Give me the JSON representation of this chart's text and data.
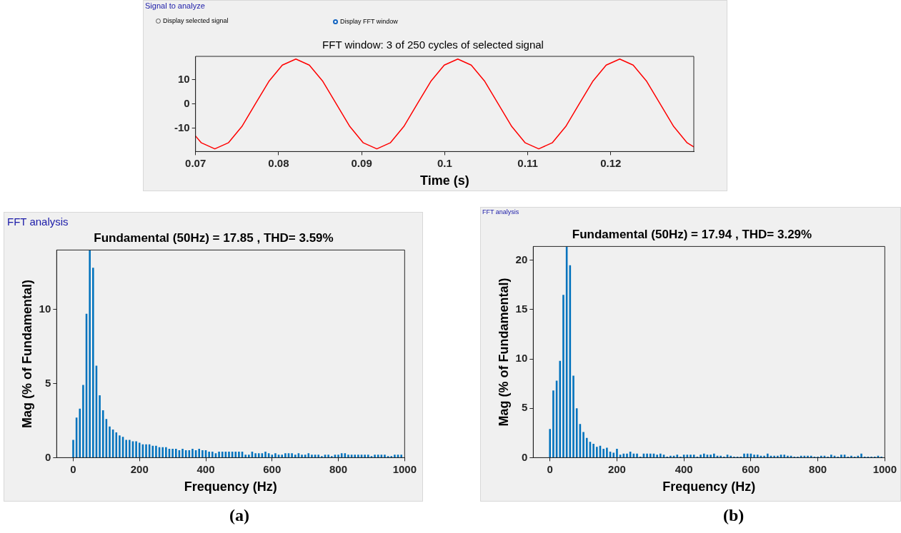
{
  "chart_data": [
    {
      "type": "line",
      "title": "FFT window: 3 of 250 cycles of selected signal",
      "xlabel": "Time (s)",
      "color": "#ff0000",
      "x": [
        0.07,
        0.0707,
        0.07232,
        0.07395,
        0.07558,
        0.0772,
        0.07883,
        0.08045,
        0.08208,
        0.0837,
        0.08533,
        0.08695,
        0.08858,
        0.0902,
        0.09183,
        0.09345,
        0.09508,
        0.0967,
        0.09833,
        0.09995,
        0.10158,
        0.1032,
        0.10483,
        0.10645,
        0.10808,
        0.1097,
        0.11133,
        0.11295,
        0.11458,
        0.1162,
        0.11783,
        0.11945,
        0.12108,
        0.1227,
        0.12433,
        0.12595,
        0.12758,
        0.1292,
        0.13
      ],
      "values": [
        -13.2,
        -16.0,
        -18.5,
        -16.0,
        -9.3,
        0,
        9.3,
        16.0,
        18.5,
        16.0,
        9.3,
        0,
        -9.3,
        -16.0,
        -18.5,
        -16.0,
        -9.3,
        0,
        9.3,
        16.0,
        18.5,
        16.0,
        9.3,
        0,
        -9.3,
        -16.0,
        -18.5,
        -16.0,
        -9.3,
        0,
        9.3,
        16.0,
        18.5,
        16.0,
        9.3,
        0,
        -9.3,
        -16.0,
        -17.7
      ],
      "xlim": [
        0.07,
        0.13
      ],
      "xticks": [
        0.07,
        0.08,
        0.09,
        0.1,
        0.11,
        0.12
      ],
      "ylim": [
        -19.6,
        19.6
      ],
      "yticks": [
        -10,
        0,
        10
      ],
      "annotations": [
        "Signal to analyze",
        "Display selected signal",
        "Display FFT window"
      ]
    },
    {
      "type": "bar",
      "title": "Fundamental (50Hz) = 17.85 , THD= 3.59%",
      "xlabel": "Frequency (Hz)",
      "ylabel": "Mag (% of Fundamental)",
      "color": "#0072bd",
      "x": [
        0,
        10,
        20,
        30,
        40,
        50,
        60,
        70,
        80,
        90,
        100,
        110,
        120,
        130,
        140,
        150,
        160,
        170,
        180,
        190,
        200,
        210,
        220,
        230,
        240,
        250,
        260,
        270,
        280,
        290,
        300,
        310,
        320,
        330,
        340,
        350,
        360,
        370,
        380,
        390,
        400,
        410,
        420,
        430,
        440,
        450,
        460,
        470,
        480,
        490,
        500,
        510,
        520,
        530,
        540,
        550,
        560,
        570,
        580,
        590,
        600,
        610,
        620,
        630,
        640,
        650,
        660,
        670,
        680,
        690,
        700,
        710,
        720,
        730,
        740,
        750,
        760,
        770,
        780,
        790,
        800,
        810,
        820,
        830,
        840,
        850,
        860,
        870,
        880,
        890,
        900,
        910,
        920,
        930,
        940,
        950,
        960,
        970,
        980,
        990
      ],
      "values": [
        1.2,
        2.7,
        3.3,
        4.9,
        9.7,
        14,
        12.8,
        6.2,
        4.2,
        3.2,
        2.6,
        2.1,
        1.9,
        1.7,
        1.5,
        1.4,
        1.2,
        1.2,
        1.1,
        1.1,
        1.0,
        0.9,
        0.9,
        0.9,
        0.8,
        0.8,
        0.7,
        0.7,
        0.7,
        0.6,
        0.6,
        0.6,
        0.5,
        0.6,
        0.5,
        0.5,
        0.6,
        0.5,
        0.6,
        0.5,
        0.5,
        0.4,
        0.4,
        0.3,
        0.4,
        0.4,
        0.4,
        0.4,
        0.4,
        0.4,
        0.4,
        0.4,
        0.2,
        0.2,
        0.4,
        0.3,
        0.3,
        0.3,
        0.4,
        0.3,
        0.2,
        0.3,
        0.2,
        0.2,
        0.3,
        0.3,
        0.3,
        0.2,
        0.3,
        0.2,
        0.2,
        0.3,
        0.2,
        0.2,
        0.2,
        0.1,
        0.2,
        0.2,
        0.1,
        0.2,
        0.2,
        0.3,
        0.3,
        0.2,
        0.2,
        0.2,
        0.2,
        0.2,
        0.2,
        0.2,
        0.1,
        0.2,
        0.2,
        0.2,
        0.2,
        0.1,
        0.1,
        0.2,
        0.2,
        0.2
      ],
      "xlim": [
        -50,
        1000
      ],
      "xticks": [
        0,
        200,
        400,
        600,
        800,
        1000
      ],
      "ylim": [
        0,
        14
      ],
      "yticks": [
        0,
        5,
        10
      ],
      "annotations": [
        "FFT analysis",
        "(a)"
      ]
    },
    {
      "type": "bar",
      "title": "Fundamental (50Hz) = 17.94 , THD= 3.29%",
      "xlabel": "Frequency (Hz)",
      "ylabel": "Mag (% of Fundamental)",
      "color": "#0072bd",
      "x": [
        0,
        10,
        20,
        30,
        40,
        50,
        60,
        70,
        80,
        90,
        100,
        110,
        120,
        130,
        140,
        150,
        160,
        170,
        180,
        190,
        200,
        210,
        220,
        230,
        240,
        250,
        260,
        270,
        280,
        290,
        300,
        310,
        320,
        330,
        340,
        350,
        360,
        370,
        380,
        390,
        400,
        410,
        420,
        430,
        440,
        450,
        460,
        470,
        480,
        490,
        500,
        510,
        520,
        530,
        540,
        550,
        560,
        570,
        580,
        590,
        600,
        610,
        620,
        630,
        640,
        650,
        660,
        670,
        680,
        690,
        700,
        710,
        720,
        730,
        740,
        750,
        760,
        770,
        780,
        790,
        800,
        810,
        820,
        830,
        840,
        850,
        860,
        870,
        880,
        890,
        900,
        910,
        920,
        930,
        940,
        950,
        960,
        970,
        980,
        990
      ],
      "values": [
        2.9,
        6.8,
        7.8,
        9.8,
        16.5,
        21.4,
        19.5,
        8.3,
        5.0,
        3.4,
        2.6,
        2.0,
        1.6,
        1.4,
        1.1,
        1.2,
        0.9,
        1.0,
        0.6,
        0.5,
        0.9,
        0.3,
        0.4,
        0.4,
        0.6,
        0.4,
        0.4,
        0.1,
        0.4,
        0.4,
        0.4,
        0.4,
        0.3,
        0.4,
        0.3,
        0.1,
        0.2,
        0.2,
        0.3,
        0.1,
        0.3,
        0.3,
        0.3,
        0.3,
        0.1,
        0.3,
        0.4,
        0.3,
        0.3,
        0.4,
        0.2,
        0.2,
        0.1,
        0.3,
        0.2,
        0.1,
        0.1,
        0.1,
        0.4,
        0.4,
        0.4,
        0.3,
        0.3,
        0.2,
        0.2,
        0.4,
        0.2,
        0.2,
        0.2,
        0.3,
        0.3,
        0.2,
        0.2,
        0.1,
        0.1,
        0.2,
        0.2,
        0.2,
        0.2,
        0.1,
        0.1,
        0.2,
        0.2,
        0.1,
        0.3,
        0.2,
        0.1,
        0.3,
        0.3,
        0.1,
        0.2,
        0.1,
        0.2,
        0.4,
        0.1,
        0.1,
        0.1,
        0.1,
        0.2,
        0.1
      ],
      "xlim": [
        -50,
        1000
      ],
      "xticks": [
        0,
        200,
        400,
        600,
        800,
        1000
      ],
      "ylim": [
        0,
        21.4
      ],
      "yticks": [
        0,
        5,
        10,
        15,
        20
      ],
      "annotations": [
        "FFT analysis",
        "(b)"
      ]
    }
  ]
}
